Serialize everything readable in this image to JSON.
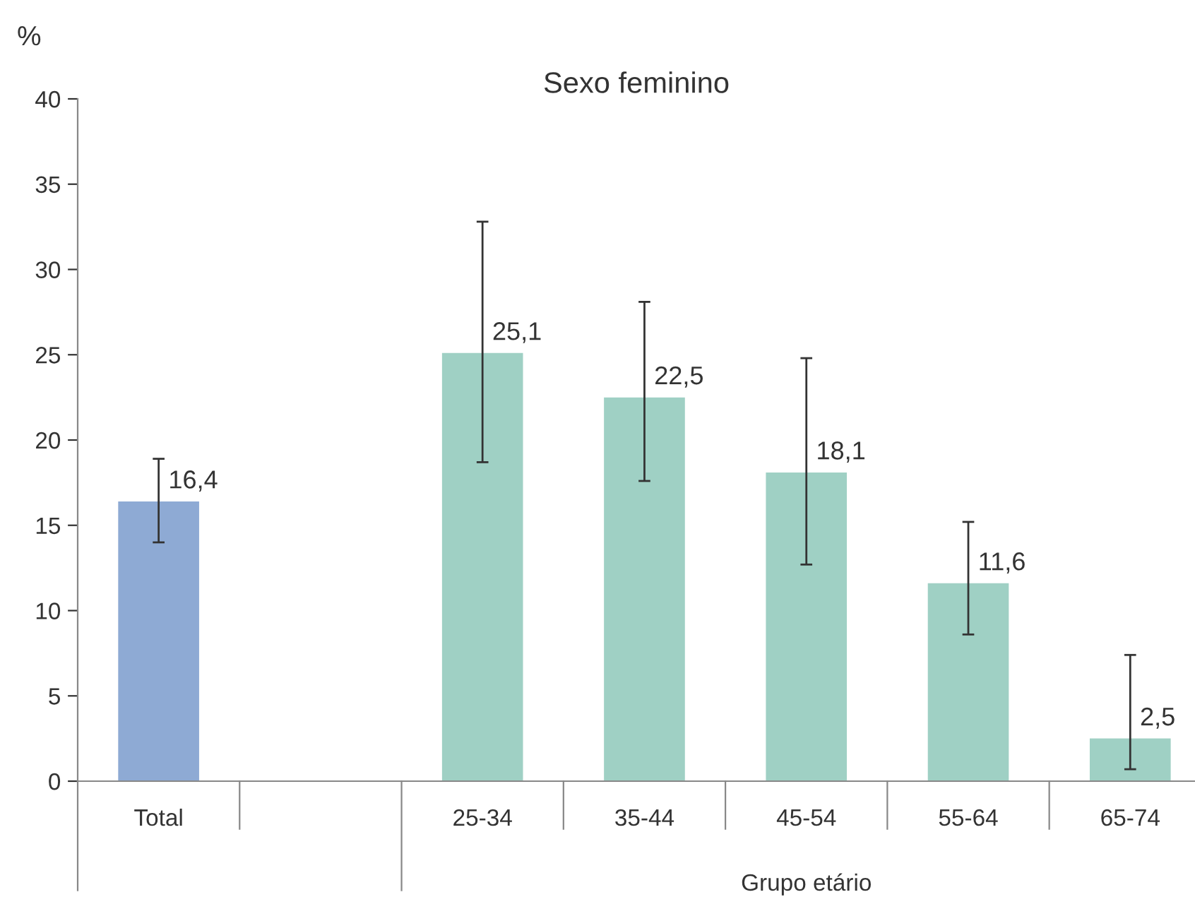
{
  "chart_data": {
    "type": "bar",
    "title": "Sexo feminino",
    "ylabel": "%",
    "xlabel": "Grupo etário",
    "categories": [
      "Total",
      null,
      "25-34",
      "35-44",
      "45-54",
      "55-64",
      "65-74"
    ],
    "values": [
      16.4,
      null,
      25.1,
      22.5,
      18.1,
      11.6,
      2.5
    ],
    "colors": [
      "#8eaad4",
      null,
      "#9fd0c4",
      "#9fd0c4",
      "#9fd0c4",
      "#9fd0c4",
      "#9fd0c4"
    ],
    "errors": [
      [
        14.0,
        18.9
      ],
      null,
      [
        18.7,
        32.8
      ],
      [
        17.6,
        28.1
      ],
      [
        12.7,
        24.8
      ],
      [
        8.6,
        15.2
      ],
      [
        0.7,
        7.4
      ]
    ],
    "value_labels": [
      "16,4",
      null,
      "25,1",
      "22,5",
      "18,1",
      "11,6",
      "2,5"
    ],
    "ylim": [
      0,
      40
    ],
    "yticks": [
      0,
      5,
      10,
      15,
      20,
      25,
      30,
      35,
      40
    ],
    "grid": false,
    "legend": false
  }
}
